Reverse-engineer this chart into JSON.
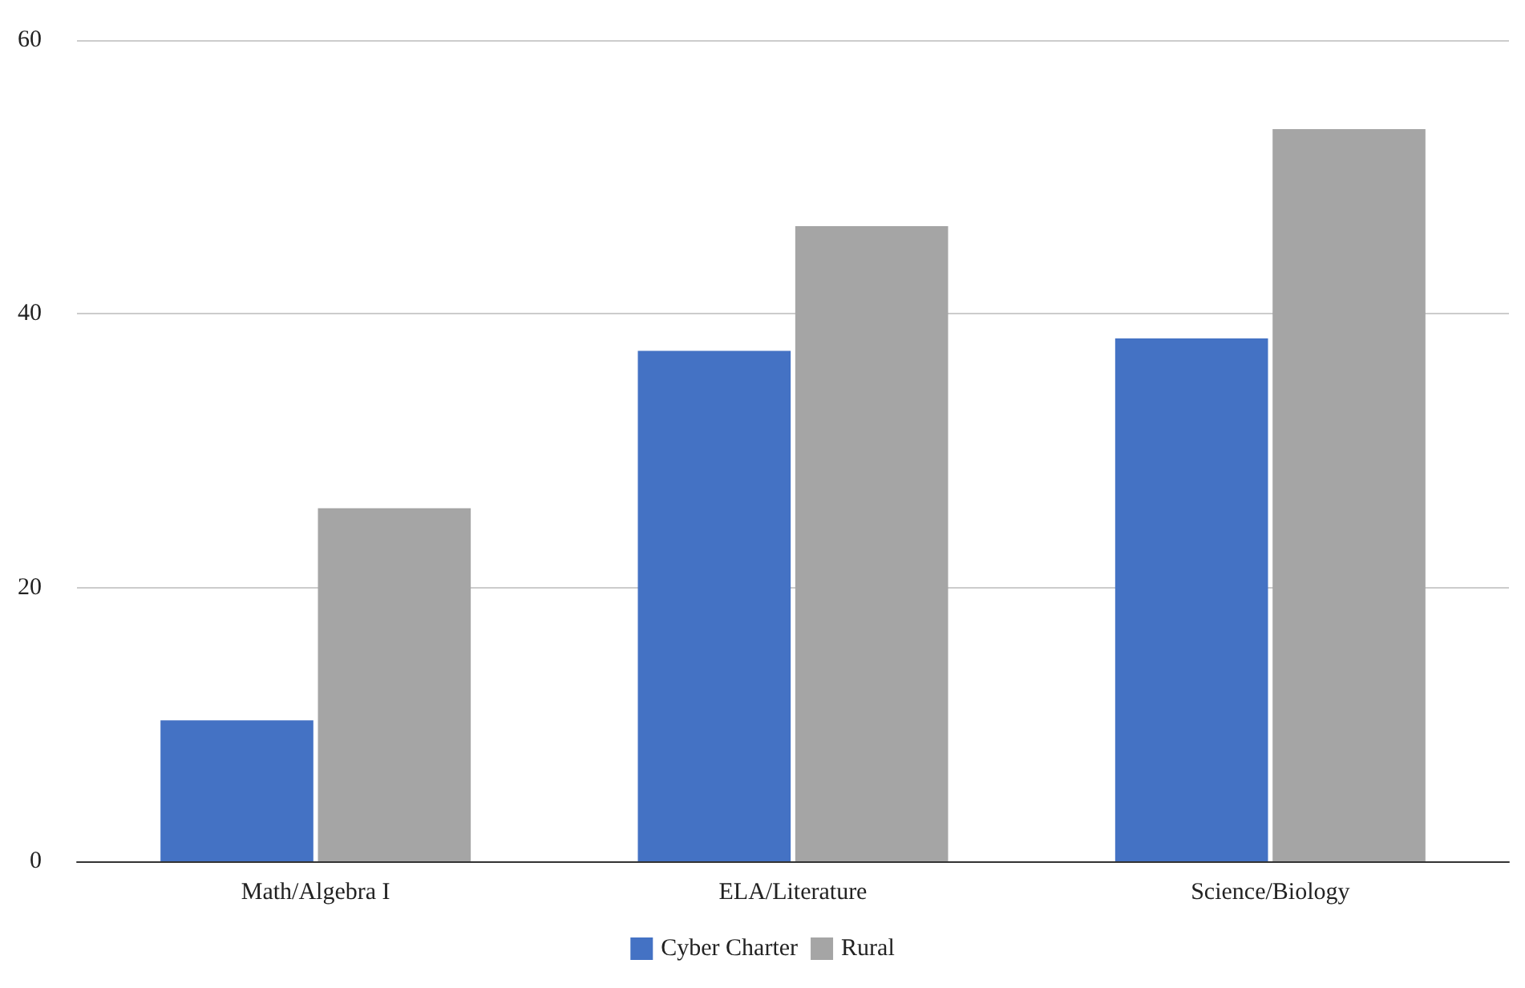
{
  "chart_data": {
    "type": "bar",
    "categories": [
      "Math/Algebra I",
      "ELA/Literature",
      "Science/Biology"
    ],
    "series": [
      {
        "name": "Cyber Charter",
        "color": "#4472c4",
        "values": [
          10.3,
          37.3,
          38.2
        ]
      },
      {
        "name": "Rural",
        "color": "#a5a5a5",
        "values": [
          25.8,
          46.4,
          53.5
        ]
      }
    ],
    "ylim": [
      0,
      60
    ],
    "yticks": [
      0,
      20,
      40,
      60
    ],
    "grid": "y",
    "legend": "bottom"
  }
}
